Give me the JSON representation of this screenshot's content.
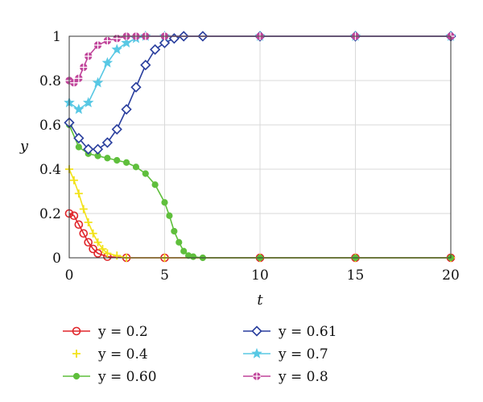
{
  "chart_data": {
    "type": "scatter",
    "xlabel": "t",
    "ylabel": "y",
    "xlim": [
      0,
      20
    ],
    "ylim": [
      0,
      1
    ],
    "x_ticks": [
      0,
      5,
      10,
      15,
      20
    ],
    "y_ticks": [
      0,
      0.2,
      0.4,
      0.6,
      0.8,
      1
    ],
    "x_tick_labels": [
      "0",
      "5",
      "10",
      "15",
      "20"
    ],
    "y_tick_labels": [
      "0",
      "0.2",
      "0.4",
      "0.6",
      "0.8",
      "1"
    ],
    "grid": true,
    "legend_position": "bottom",
    "series": [
      {
        "name": "y = 0.2",
        "color": "#e0262b",
        "marker": "circle",
        "x": [
          0,
          0.25,
          0.5,
          0.75,
          1.0,
          1.25,
          1.5,
          2.0,
          3.0,
          5.0,
          10.0,
          15.0,
          20.0
        ],
        "values": [
          0.2,
          0.19,
          0.15,
          0.11,
          0.07,
          0.04,
          0.02,
          0.005,
          0.0,
          0.0,
          0.0,
          0.0,
          0.0
        ]
      },
      {
        "name": "y = 0.4",
        "color": "#f2e21a",
        "marker": "plus",
        "x": [
          0,
          0.25,
          0.5,
          0.75,
          1.0,
          1.25,
          1.5,
          1.75,
          2.0,
          2.5,
          3.0,
          5.0,
          10.0,
          15.0,
          20.0
        ],
        "values": [
          0.4,
          0.35,
          0.29,
          0.22,
          0.16,
          0.11,
          0.07,
          0.04,
          0.02,
          0.01,
          0.0,
          0.0,
          0.0,
          0.0,
          0.0
        ]
      },
      {
        "name": "y = 0.60",
        "color": "#5fbf3c",
        "marker": "dot",
        "x": [
          0,
          0.5,
          1.0,
          1.5,
          2.0,
          2.5,
          3.0,
          3.5,
          4.0,
          4.5,
          5.0,
          5.25,
          5.5,
          5.75,
          6.0,
          6.25,
          6.5,
          7.0,
          10.0,
          15.0,
          20.0
        ],
        "values": [
          0.6,
          0.5,
          0.47,
          0.46,
          0.45,
          0.44,
          0.43,
          0.41,
          0.38,
          0.33,
          0.25,
          0.19,
          0.12,
          0.07,
          0.03,
          0.01,
          0.005,
          0.0,
          0.0,
          0.0,
          0.0
        ]
      },
      {
        "name": "y = 0.61",
        "color": "#2a3f9e",
        "marker": "diamond",
        "x": [
          0,
          0.5,
          1.0,
          1.5,
          2.0,
          2.5,
          3.0,
          3.5,
          4.0,
          4.5,
          5.0,
          5.5,
          6.0,
          7.0,
          10.0,
          15.0,
          20.0
        ],
        "values": [
          0.61,
          0.54,
          0.49,
          0.49,
          0.52,
          0.58,
          0.67,
          0.77,
          0.87,
          0.94,
          0.97,
          0.99,
          1.0,
          1.0,
          1.0,
          1.0,
          1.0
        ]
      },
      {
        "name": "y = 0.7",
        "color": "#58c8e4",
        "marker": "star",
        "x": [
          0,
          0.5,
          1.0,
          1.5,
          2.0,
          2.5,
          3.0,
          3.5,
          4.0,
          5.0,
          10.0,
          15.0,
          20.0
        ],
        "values": [
          0.7,
          0.67,
          0.7,
          0.79,
          0.88,
          0.94,
          0.97,
          0.99,
          1.0,
          1.0,
          1.0,
          1.0,
          1.0
        ]
      },
      {
        "name": "y = 0.8",
        "color": "#c0449a",
        "marker": "cross",
        "x": [
          0,
          0.25,
          0.5,
          0.75,
          1.0,
          1.5,
          2.0,
          2.5,
          3.0,
          3.5,
          4.0,
          5.0,
          10.0,
          15.0,
          20.0
        ],
        "values": [
          0.8,
          0.79,
          0.81,
          0.86,
          0.91,
          0.96,
          0.98,
          0.99,
          1.0,
          1.0,
          1.0,
          1.0,
          1.0,
          1.0,
          1.0
        ]
      }
    ]
  }
}
